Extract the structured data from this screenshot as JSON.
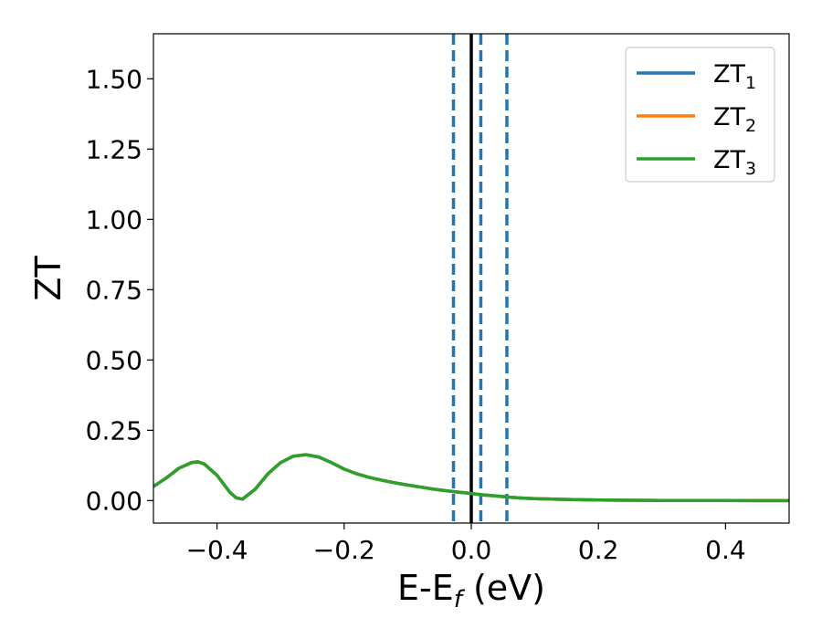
{
  "chart_data": {
    "type": "line",
    "title": "",
    "xlabel": {
      "base": "E-E",
      "sub": "f",
      "suffix": " (eV)"
    },
    "ylabel": "ZT",
    "xlim": [
      -0.5,
      0.5
    ],
    "ylim": [
      -0.08,
      1.66
    ],
    "xticks": [
      -0.4,
      -0.2,
      0.0,
      0.2,
      0.4
    ],
    "xtick_labels": [
      "−0.4",
      "−0.2",
      "0.0",
      "0.2",
      "0.4"
    ],
    "yticks": [
      0.0,
      0.25,
      0.5,
      0.75,
      1.0,
      1.25,
      1.5
    ],
    "ytick_labels": [
      "0.00",
      "0.25",
      "0.50",
      "0.75",
      "1.00",
      "1.25",
      "1.50"
    ],
    "grid": false,
    "legend_position": "top-right",
    "series": [
      {
        "name": "ZT",
        "subscript": "1",
        "color": "#1f77b4",
        "x": [
          -0.5,
          -0.48,
          -0.46,
          -0.44,
          -0.43,
          -0.42,
          -0.4,
          -0.38,
          -0.37,
          -0.36,
          -0.34,
          -0.32,
          -0.3,
          -0.28,
          -0.26,
          -0.24,
          -0.22,
          -0.2,
          -0.18,
          -0.16,
          -0.14,
          -0.12,
          -0.1,
          -0.08,
          -0.06,
          -0.04,
          -0.02,
          0.0,
          0.02,
          0.04,
          0.06,
          0.08,
          0.1,
          0.15,
          0.2,
          0.25,
          0.3,
          0.35,
          0.4,
          0.45,
          0.5
        ],
        "y": [
          0.05,
          0.08,
          0.115,
          0.135,
          0.138,
          0.13,
          0.09,
          0.03,
          0.01,
          0.005,
          0.04,
          0.095,
          0.135,
          0.158,
          0.163,
          0.155,
          0.135,
          0.112,
          0.095,
          0.082,
          0.072,
          0.063,
          0.055,
          0.048,
          0.041,
          0.035,
          0.03,
          0.025,
          0.02,
          0.016,
          0.012,
          0.009,
          0.007,
          0.004,
          0.002,
          0.001,
          0.0005,
          0.0003,
          0.0002,
          0.0001,
          0.0001
        ]
      },
      {
        "name": "ZT",
        "subscript": "2",
        "color": "#ff7f0e",
        "x": [
          -0.5,
          -0.48,
          -0.46,
          -0.44,
          -0.43,
          -0.42,
          -0.4,
          -0.38,
          -0.37,
          -0.36,
          -0.34,
          -0.32,
          -0.3,
          -0.28,
          -0.26,
          -0.24,
          -0.22,
          -0.2,
          -0.18,
          -0.16,
          -0.14,
          -0.12,
          -0.1,
          -0.08,
          -0.06,
          -0.04,
          -0.02,
          0.0,
          0.02,
          0.04,
          0.06,
          0.08,
          0.1,
          0.15,
          0.2,
          0.25,
          0.3,
          0.35,
          0.4,
          0.45,
          0.5
        ],
        "y": [
          0.05,
          0.08,
          0.115,
          0.135,
          0.138,
          0.13,
          0.09,
          0.03,
          0.01,
          0.005,
          0.04,
          0.095,
          0.135,
          0.158,
          0.163,
          0.155,
          0.135,
          0.112,
          0.095,
          0.082,
          0.072,
          0.063,
          0.055,
          0.048,
          0.041,
          0.035,
          0.03,
          0.025,
          0.02,
          0.016,
          0.012,
          0.009,
          0.007,
          0.004,
          0.002,
          0.001,
          0.0005,
          0.0003,
          0.0002,
          0.0001,
          0.0001
        ]
      },
      {
        "name": "ZT",
        "subscript": "3",
        "color": "#2ca02c",
        "x": [
          -0.5,
          -0.48,
          -0.46,
          -0.44,
          -0.43,
          -0.42,
          -0.4,
          -0.38,
          -0.37,
          -0.36,
          -0.34,
          -0.32,
          -0.3,
          -0.28,
          -0.26,
          -0.24,
          -0.22,
          -0.2,
          -0.18,
          -0.16,
          -0.14,
          -0.12,
          -0.1,
          -0.08,
          -0.06,
          -0.04,
          -0.02,
          0.0,
          0.02,
          0.04,
          0.06,
          0.08,
          0.1,
          0.15,
          0.2,
          0.25,
          0.3,
          0.35,
          0.4,
          0.45,
          0.5
        ],
        "y": [
          0.05,
          0.08,
          0.115,
          0.135,
          0.138,
          0.13,
          0.09,
          0.03,
          0.01,
          0.005,
          0.04,
          0.095,
          0.135,
          0.158,
          0.163,
          0.155,
          0.135,
          0.112,
          0.095,
          0.082,
          0.072,
          0.063,
          0.055,
          0.048,
          0.041,
          0.035,
          0.03,
          0.025,
          0.02,
          0.016,
          0.012,
          0.009,
          0.007,
          0.004,
          0.002,
          0.001,
          0.0005,
          0.0003,
          0.0002,
          0.0001,
          0.0001
        ]
      }
    ],
    "vlines": [
      {
        "x": -0.028,
        "style": "dashed",
        "color": "#1f77b4"
      },
      {
        "x": 0.0,
        "style": "solid",
        "color": "#000000"
      },
      {
        "x": 0.015,
        "style": "dashed",
        "color": "#1f77b4"
      },
      {
        "x": 0.056,
        "style": "dashed",
        "color": "#1f77b4"
      }
    ]
  }
}
